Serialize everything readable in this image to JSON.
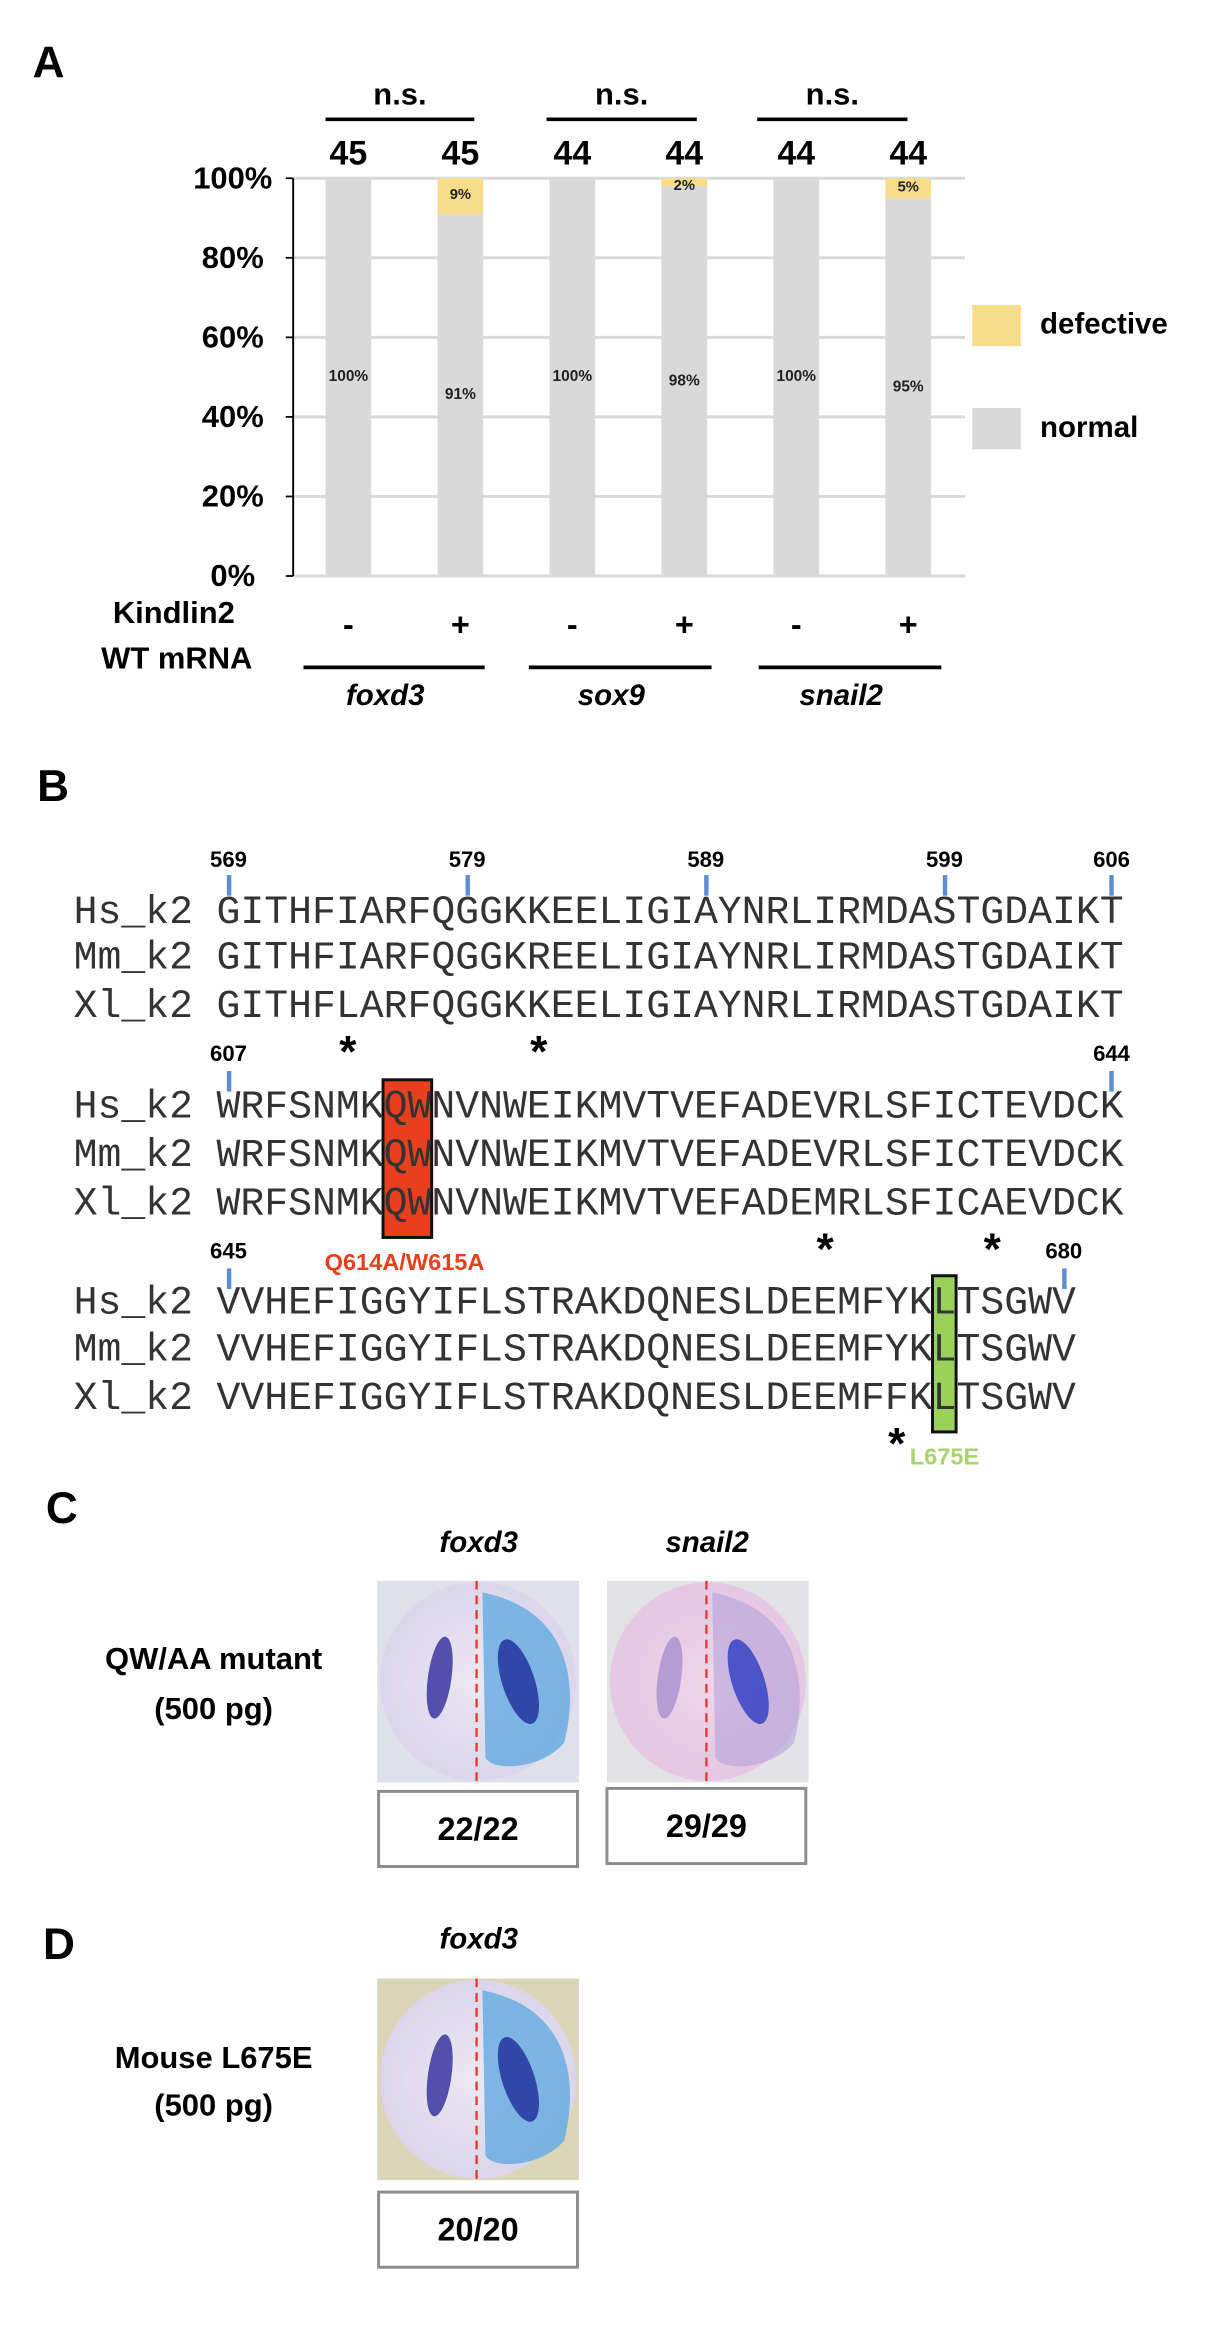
{
  "panels": {
    "a": "A",
    "b": "B",
    "c": "C",
    "d": "D"
  },
  "chart_data": {
    "type": "bar",
    "stacked": true,
    "percent": true,
    "categories": [
      "foxd3 -",
      "foxd3 +",
      "sox9 -",
      "sox9 +",
      "snail2 -",
      "snail2 +"
    ],
    "series": [
      {
        "name": "normal",
        "color": "#d9d9d9",
        "values": [
          100,
          91,
          100,
          98,
          100,
          95
        ],
        "labels": [
          "100%",
          "91%",
          "100%",
          "98%",
          "100%",
          "95%"
        ]
      },
      {
        "name": "defective",
        "color": "#f7dc8b",
        "values": [
          0,
          9,
          0,
          2,
          0,
          5
        ],
        "labels": [
          "",
          "9%",
          "",
          "2%",
          "",
          "5%"
        ]
      }
    ],
    "n_values": [
      "45",
      "45",
      "44",
      "44",
      "44",
      "44"
    ],
    "significance": [
      "n.s.",
      "n.s.",
      "n.s."
    ],
    "ylim": [
      0,
      100
    ],
    "yticks": [
      "0%",
      "20%",
      "40%",
      "60%",
      "80%",
      "100%"
    ],
    "grid": true,
    "legend_position": "right",
    "treatment_label_line1": "Kindlin2",
    "treatment_label_line2": "WT mRNA",
    "treatment_signs": [
      "-",
      "+",
      "-",
      "+",
      "-",
      "+"
    ],
    "genes": [
      "foxd3",
      "sox9",
      "snail2"
    ]
  },
  "alignment": {
    "mismatch_marker": "*",
    "blocks": [
      {
        "start": 569,
        "numbers": [
          569,
          579,
          589,
          599,
          606
        ],
        "rows": [
          {
            "name": "Hs_k2",
            "seq": "GITHFIARFQGGKKEELIGIAYNRLIRMDASTGDAIKT"
          },
          {
            "name": "Mm_k2",
            "seq": "GITHFIARFQGGKREELIGIAYNRLIRMDASTGDAIKT"
          },
          {
            "name": "Xl_k2",
            "seq": "GITHFLARFQGGKKEELIGIAYNRLIRMDASTGDAIKT"
          }
        ]
      },
      {
        "start": 607,
        "numbers": [
          607,
          644
        ],
        "rows": [
          {
            "name": "Hs_k2",
            "seq": "WRFSNMKQWNVNWEIKMVTVEFADEVRLSFICTEVDCK"
          },
          {
            "name": "Mm_k2",
            "seq": "WRFSNMKQWNVNWEIKMVTVEFADEVRLSFICTEVDCK"
          },
          {
            "name": "Xl_k2",
            "seq": "WRFSNMKQWNVNWEIKMVTVEFADEMRLSFICAEVDCK"
          }
        ]
      },
      {
        "start": 645,
        "numbers": [
          645,
          680
        ],
        "rows": [
          {
            "name": "Hs_k2",
            "seq": "VVHEFIGGYIFLSTRAKDQNESLDEEMFYKLTSGWV"
          },
          {
            "name": "Mm_k2",
            "seq": "VVHEFIGGYIFLSTRAKDQNESLDEEMFYKLTSGWV"
          },
          {
            "name": "Xl_k2",
            "seq": "VVHEFIGGYIFLSTRAKDQNESLDEEMFFKLTSGWV"
          }
        ]
      }
    ],
    "mutations": [
      {
        "label": "Q614A/W615A",
        "from": 614,
        "to": 615,
        "color": "#e8401f",
        "label_color": "#e8401f"
      },
      {
        "label": "L675E",
        "from": 675,
        "to": 675,
        "color": "#9bd05a",
        "label_color": "#a6d46e"
      }
    ]
  },
  "panel_c": {
    "condition_line1": "QW/AA mutant",
    "condition_line2": "(500 pg)",
    "images": [
      {
        "gene": "foxd3",
        "count": "22/22"
      },
      {
        "gene": "snail2",
        "count": "29/29"
      }
    ]
  },
  "panel_d": {
    "condition_line1": "Mouse L675E",
    "condition_line2": "(500 pg)",
    "images": [
      {
        "gene": "foxd3",
        "count": "20/20"
      }
    ]
  }
}
